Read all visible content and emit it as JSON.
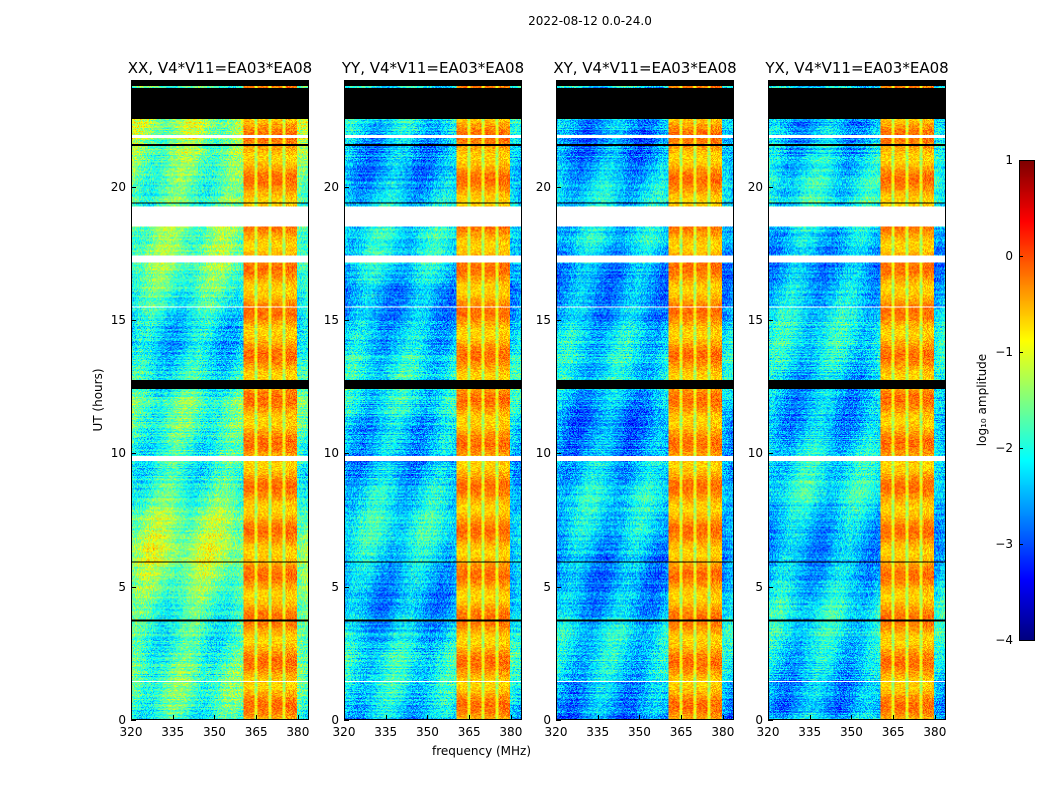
{
  "chart_data": {
    "type": "heatmap",
    "title": "2022-08-12 0.0-24.0",
    "xlabel": "frequency (MHz)",
    "ylabel": "UT (hours)",
    "xlim": [
      320,
      384
    ],
    "ylim": [
      0,
      24
    ],
    "xticks": [
      320,
      335,
      350,
      365,
      380
    ],
    "yticks": [
      0,
      5,
      10,
      15,
      20
    ],
    "panels": [
      {
        "title": "XX, V4*V11=EA03*EA08",
        "background_log_amp": -1.8
      },
      {
        "title": "YY, V4*V11=EA03*EA08",
        "background_log_amp": -2.3
      },
      {
        "title": "XY, V4*V11=EA03*EA08",
        "background_log_amp": -2.4
      },
      {
        "title": "YX, V4*V11=EA03*EA08",
        "background_log_amp": -2.3
      }
    ],
    "rfi_band_mhz": [
      360.5,
      380
    ],
    "rfi_band_log_amp": -0.4,
    "rfi_band_stripes_mhz": [
      365,
      370,
      375
    ],
    "flagged_black_hours": [
      [
        22.6,
        23.75
      ],
      [
        23.85,
        24.0
      ],
      [
        12.45,
        12.75
      ],
      [
        21.6,
        21.65
      ],
      [
        19.4,
        19.45
      ],
      [
        5.9,
        5.95
      ],
      [
        3.7,
        3.75
      ]
    ],
    "flagged_white_hours": [
      [
        18.55,
        19.3
      ],
      [
        17.2,
        17.45
      ],
      [
        9.75,
        9.9
      ],
      [
        21.9,
        22.0
      ],
      [
        15.5,
        15.55
      ],
      [
        1.4,
        1.45
      ]
    ],
    "colorbar": {
      "label": "log₁₀ amplitude",
      "range": [
        -4,
        1
      ],
      "ticks": [
        "1",
        "0",
        "−1",
        "−2",
        "−3",
        "−4"
      ],
      "colormap": "jet"
    }
  }
}
